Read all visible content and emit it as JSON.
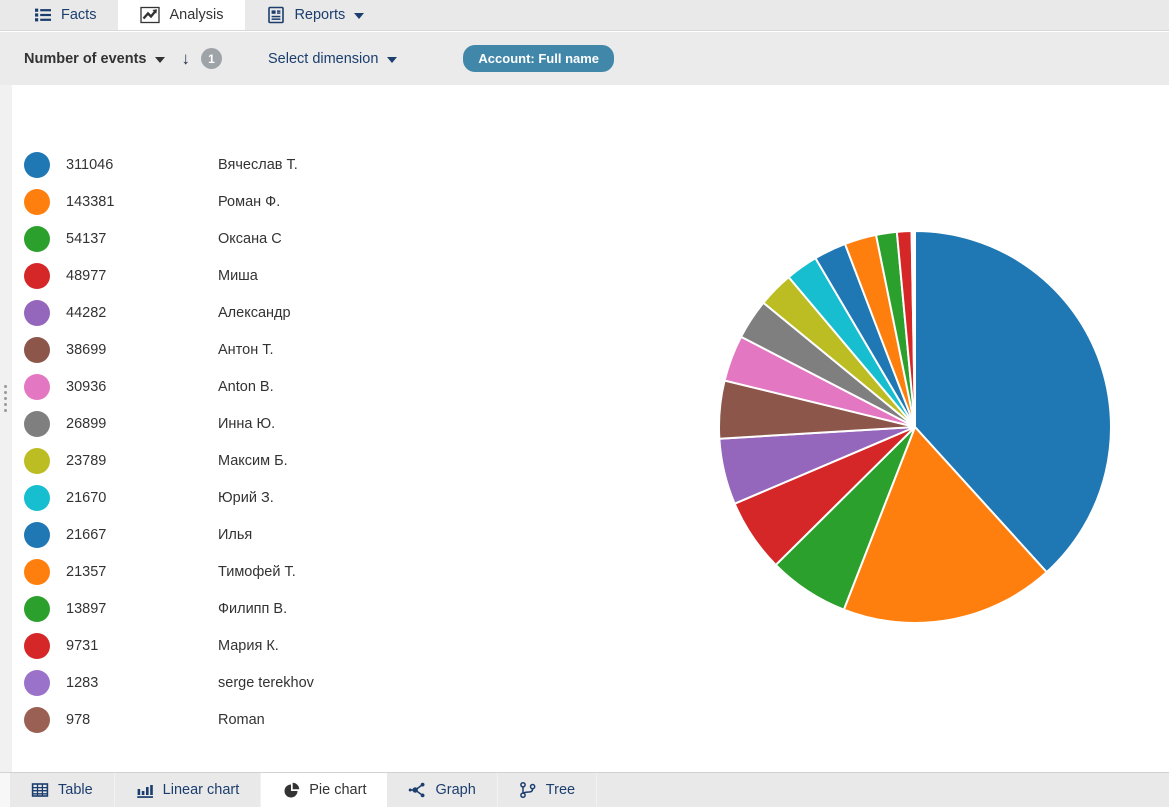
{
  "top_tabs": [
    {
      "label": "Facts",
      "icon": "list-icon",
      "active": false
    },
    {
      "label": "Analysis",
      "icon": "line-chart-icon",
      "active": true
    },
    {
      "label": "Reports",
      "icon": "report-icon",
      "active": false,
      "caret": true
    }
  ],
  "toolbar": {
    "measure_label": "Number of events",
    "sort_order": "descending",
    "sort_icon_glyph": "↓",
    "badge_count": "1",
    "select_dimension_label": "Select dimension",
    "account_filter_label": "Account: Full name"
  },
  "chart_data": {
    "type": "pie",
    "title": "",
    "measure": "Number of events",
    "dimension": "Account: Full name",
    "start_angle_deg": 0,
    "direction": "clockwise",
    "legend_position": "left",
    "legend_columns": [
      "value",
      "label"
    ],
    "labels": [
      "Вячеслав Т.",
      "Роман Ф.",
      "Оксана С",
      "Миша",
      "Александр",
      "Антон Т.",
      "Anton B.",
      "Инна Ю.",
      "Максим Б.",
      "Юрий З.",
      "Илья",
      "Тимофей Т.",
      "Филипп В.",
      "Мария К.",
      "serge terekhov",
      "Roman"
    ],
    "values": [
      311046,
      143381,
      54137,
      48977,
      44282,
      38699,
      30936,
      26899,
      23789,
      21670,
      21667,
      21357,
      13897,
      9731,
      1283,
      978
    ],
    "colors": [
      "#1f77b4",
      "#ff7f0e",
      "#2ca02c",
      "#d62728",
      "#9467bd",
      "#8c564b",
      "#e377c2",
      "#7f7f7f",
      "#bcbd22",
      "#17becf",
      "#1f77b4",
      "#ff7f0e",
      "#2ca02c",
      "#d62728",
      "#9b72c9",
      "#9a6054"
    ]
  },
  "bottom_tabs": [
    {
      "label": "Table",
      "icon": "table-icon",
      "active": false
    },
    {
      "label": "Linear chart",
      "icon": "bar-chart-icon",
      "active": false
    },
    {
      "label": "Pie chart",
      "icon": "pie-chart-icon",
      "active": true
    },
    {
      "label": "Graph",
      "icon": "graph-icon",
      "active": false
    },
    {
      "label": "Tree",
      "icon": "tree-icon",
      "active": false
    }
  ],
  "colors": {
    "navy_text": "#1c3e6e",
    "active_tab_text": "#333333",
    "bar_background": "#e9e9e9",
    "account_chip_background": "#4187aa",
    "badge_background": "#9ea3a8",
    "content_background": "#ffffff"
  }
}
